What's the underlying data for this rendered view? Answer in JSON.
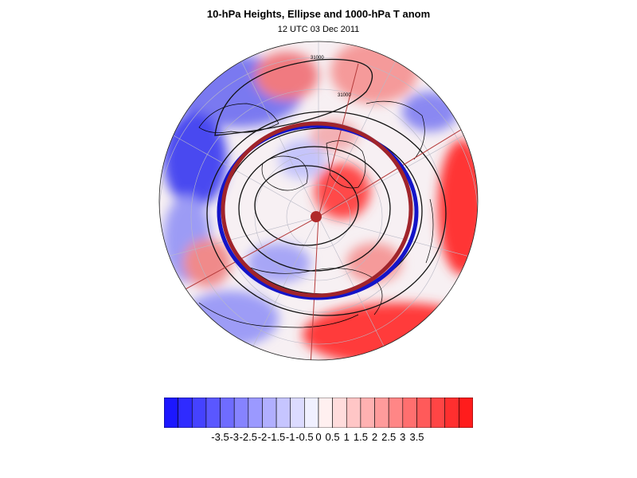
{
  "header": {
    "title": "10-hPa Heights, Ellipse and 1000-hPa T anom",
    "subtitle": "12 UTC 03 Dec 2011"
  },
  "map": {
    "projection": "north-polar-stereographic",
    "contour_labels": [
      "31000",
      "31000"
    ],
    "fill_field": "1000-hPa temperature anomaly",
    "ellipse_colors": {
      "fitted_ellipse": "#a0242b",
      "vortex_edge": "#1010c8"
    },
    "center_marker_color": "#b02a2a"
  },
  "colorbar": {
    "tick_labels": [
      "-3.5",
      "-3",
      "-2.5",
      "-2",
      "-1.5",
      "-1",
      "-0.5",
      "0",
      "0.5",
      "1",
      "1.5",
      "2",
      "2.5",
      "3",
      "3.5"
    ],
    "colors": [
      "#1c17ff",
      "#2f2bff",
      "#4542ff",
      "#5a57ff",
      "#6f6cff",
      "#8683ff",
      "#9b99ff",
      "#b1afff",
      "#c6c5ff",
      "#dcdbff",
      "#f0f0ff",
      "#fff0f0",
      "#ffdcdc",
      "#ffc6c6",
      "#ffb1b1",
      "#ff9b9b",
      "#ff8686",
      "#ff6f6f",
      "#ff5a5a",
      "#ff4545",
      "#ff2f2f",
      "#ff1c1c"
    ]
  }
}
